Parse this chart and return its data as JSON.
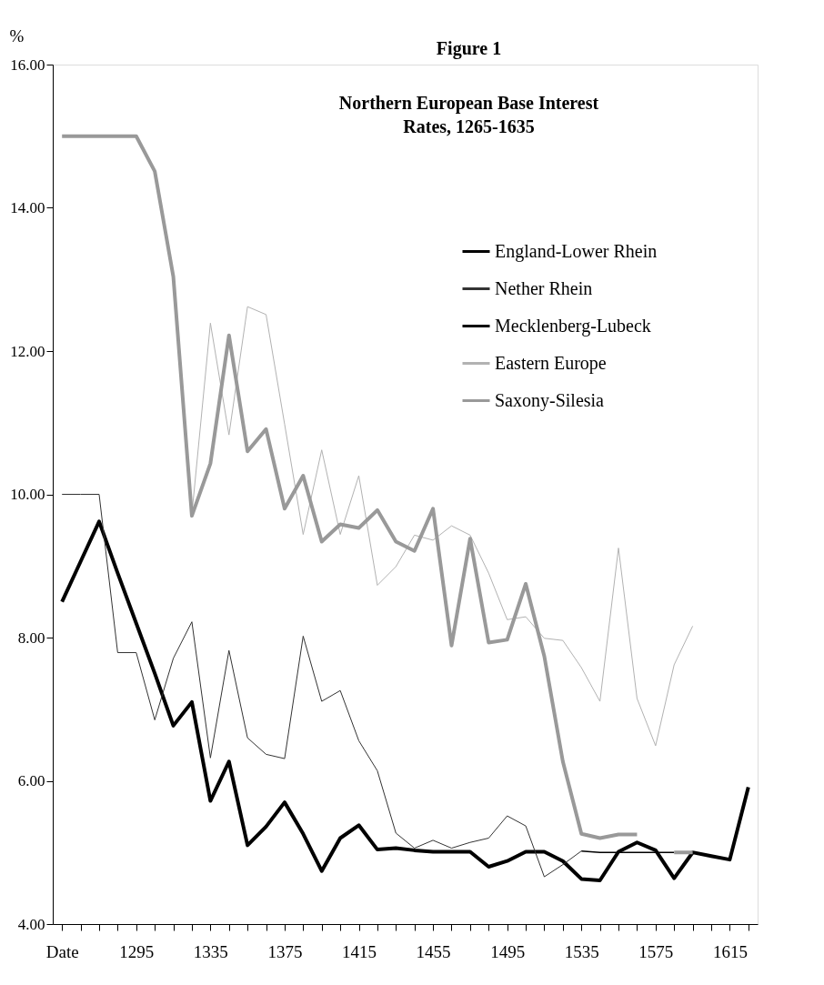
{
  "chart_data": {
    "type": "line",
    "title": "Figure 1",
    "subtitle": "Northern European Base Interest Rates, 1265-1635",
    "ylabel": "%",
    "categories": [
      "Date",
      null,
      null,
      null,
      "1295",
      null,
      null,
      null,
      "1335",
      null,
      null,
      null,
      "1375",
      null,
      null,
      null,
      "1415",
      null,
      null,
      null,
      "1455",
      null,
      null,
      null,
      "1495",
      null,
      null,
      null,
      "1535",
      null,
      null,
      null,
      "1575",
      null,
      null,
      null,
      "1615",
      null
    ],
    "series": [
      {
        "name": "England-Lower Rhein",
        "color": "#000000",
        "values": [
          8.5,
          9.06,
          9.62,
          8.9,
          8.2,
          7.5,
          6.77,
          7.1,
          5.72,
          6.27,
          5.1,
          5.36,
          5.7,
          5.26,
          4.74,
          5.2,
          5.38,
          5.04,
          5.06,
          5.03,
          5.01,
          5.01,
          5.01,
          4.8,
          4.88,
          5.01,
          5.01,
          4.88,
          4.63,
          4.61,
          5.01,
          5.14,
          5.03,
          4.64,
          5.0,
          4.95,
          4.9,
          5.91
        ]
      },
      {
        "name": "Nether Rhein",
        "color": "#333333",
        "values": [
          10.0,
          10.0,
          10.0,
          7.79,
          7.79,
          6.85,
          7.71,
          8.22,
          6.32,
          7.82,
          6.6,
          6.37,
          6.31,
          8.02,
          7.11,
          7.26,
          6.56,
          6.14,
          5.27,
          5.06,
          5.17,
          5.06,
          5.14,
          5.2,
          5.51,
          5.37,
          4.66,
          4.83,
          5.02,
          null,
          null,
          null,
          null,
          null,
          null,
          null,
          null,
          null
        ]
      },
      {
        "name": "Mecklenberg-Lubeck",
        "color": "#000000",
        "values": [
          null,
          null,
          null,
          null,
          null,
          null,
          null,
          null,
          null,
          null,
          null,
          null,
          null,
          null,
          null,
          null,
          null,
          null,
          null,
          null,
          null,
          null,
          null,
          null,
          null,
          null,
          null,
          null,
          5.02,
          5.0,
          5.0,
          5.0,
          5.0,
          5.0,
          null,
          null,
          null,
          null
        ]
      },
      {
        "name": "Eastern Europe",
        "color": "#b2b2b2",
        "values": [
          null,
          null,
          null,
          null,
          null,
          null,
          null,
          9.72,
          12.39,
          10.83,
          12.62,
          12.51,
          10.98,
          9.44,
          10.62,
          9.44,
          10.26,
          8.73,
          8.99,
          9.43,
          9.36,
          9.56,
          9.43,
          8.9,
          8.25,
          8.29,
          7.99,
          7.96,
          7.58,
          7.11,
          9.25,
          7.15,
          6.49,
          7.62,
          8.16,
          null,
          null,
          null
        ]
      },
      {
        "name": "Saxony-Silesia",
        "color": "#999999",
        "values": [
          15.0,
          15.0,
          15.0,
          15.0,
          15.0,
          14.51,
          13.04,
          9.7,
          10.43,
          12.22,
          10.6,
          10.91,
          9.8,
          10.26,
          9.34,
          9.58,
          9.53,
          9.78,
          9.34,
          9.21,
          9.8,
          7.89,
          9.38,
          7.93,
          7.97,
          8.75,
          7.74,
          6.27,
          5.26,
          5.2,
          5.25,
          5.25,
          null,
          5.0,
          5.0,
          null,
          null,
          null
        ]
      }
    ],
    "ylim": [
      4,
      16
    ],
    "yticks": [
      {
        "value": 4,
        "label": "4.00"
      },
      {
        "value": 6,
        "label": "6.00"
      },
      {
        "value": 8,
        "label": "8.00"
      },
      {
        "value": 10,
        "label": "10.00"
      },
      {
        "value": 12,
        "label": "12.00"
      },
      {
        "value": 14,
        "label": "14.00"
      },
      {
        "value": 16,
        "label": "16.00"
      }
    ],
    "grid": false,
    "legend": "top right",
    "marker": "none",
    "line_style": "solid"
  }
}
